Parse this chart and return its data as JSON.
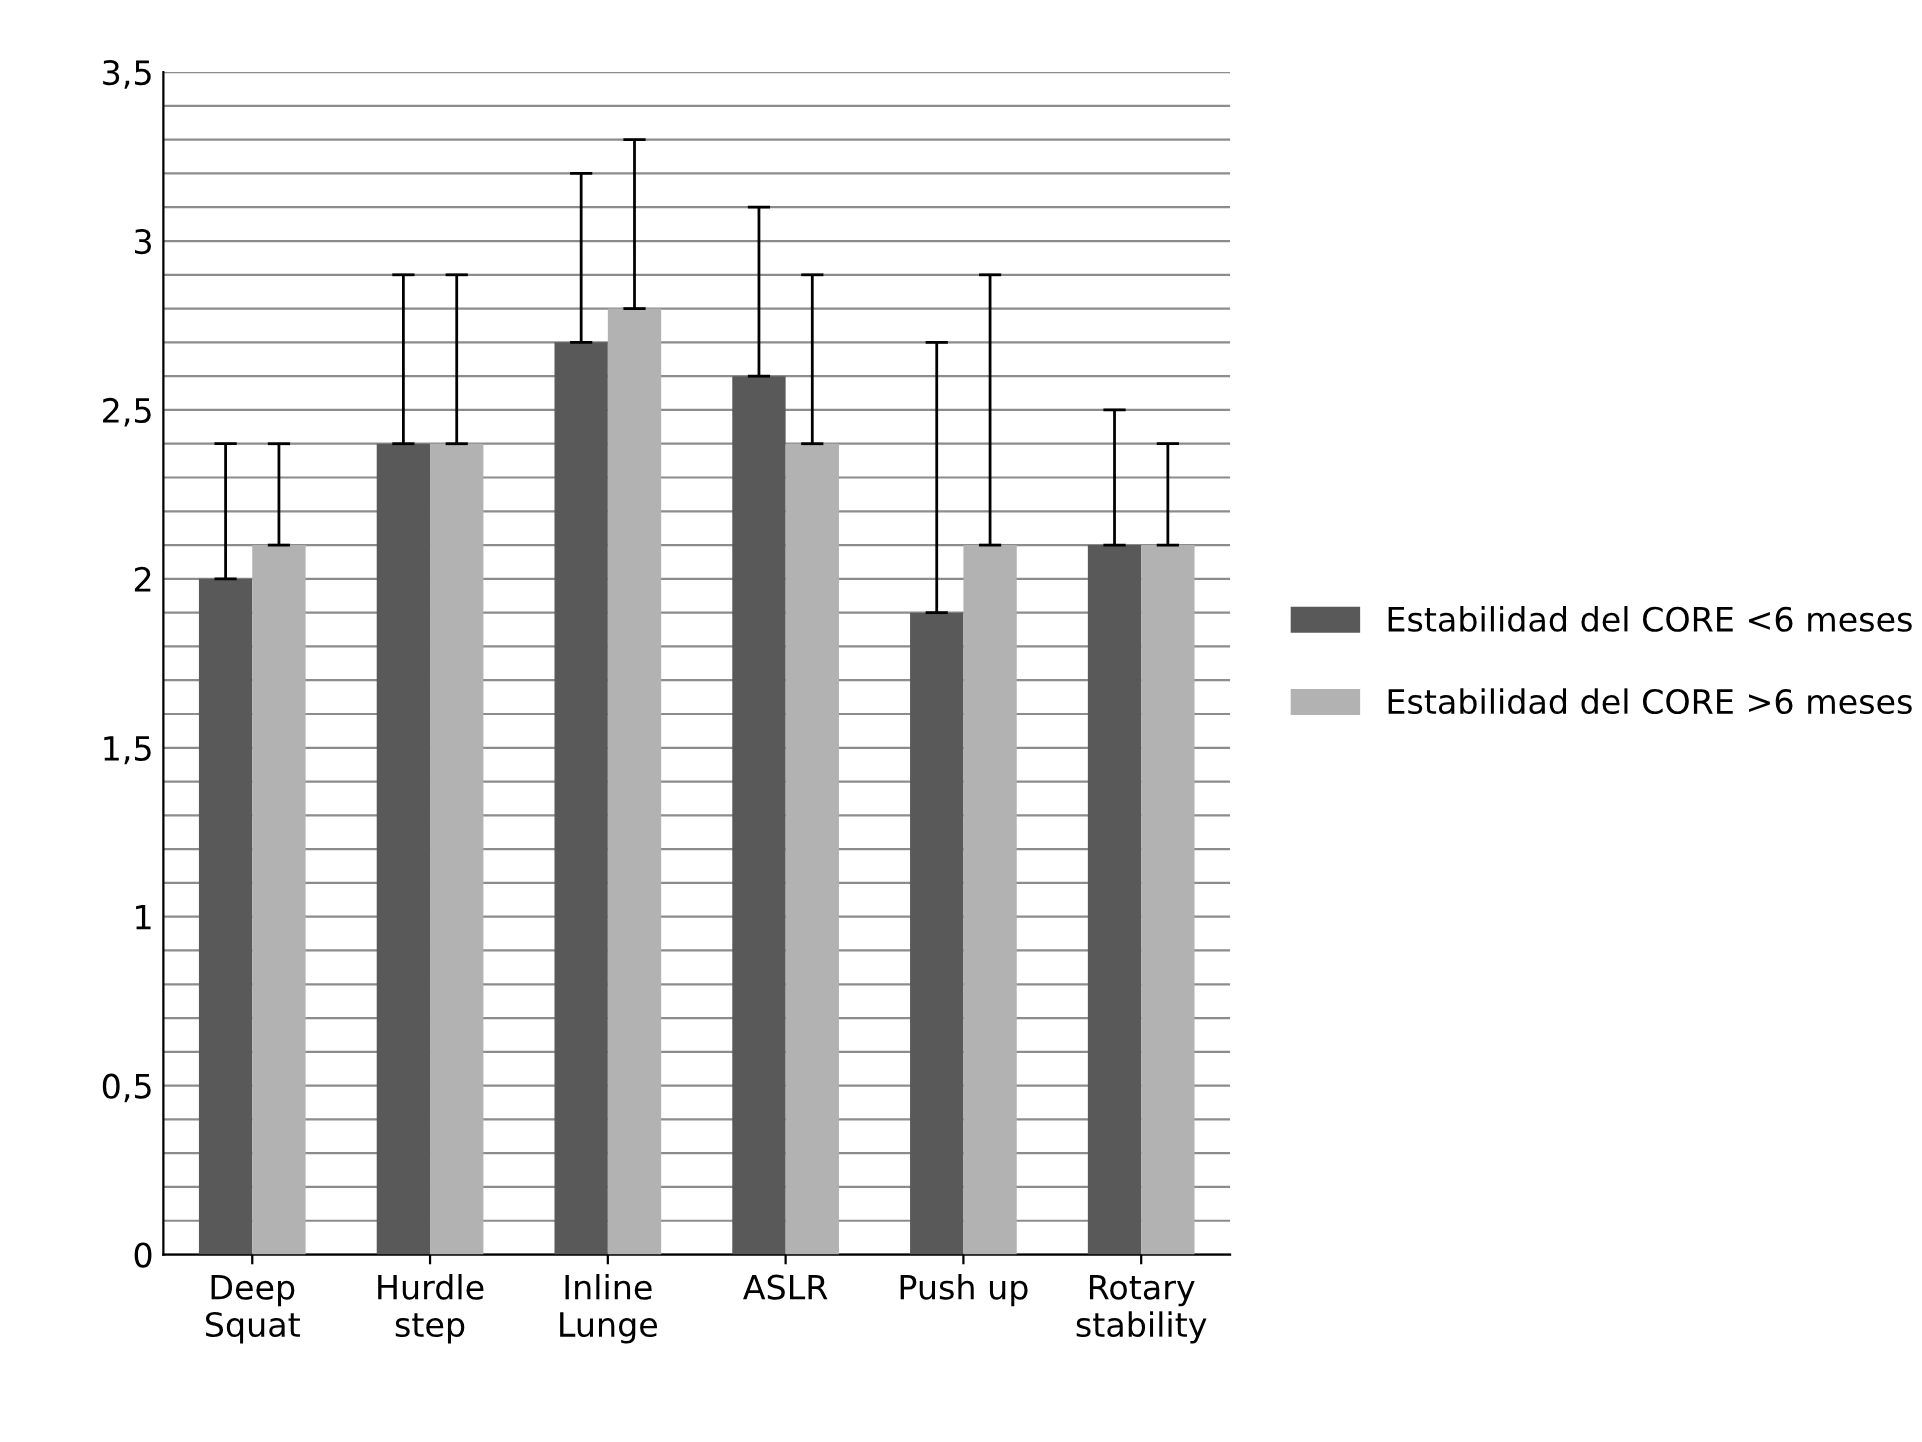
{
  "chart_data": {
    "type": "bar",
    "categories": [
      "Deep\nSquat",
      "Hurdle\nstep",
      "Inline\nLunge",
      "ASLR",
      "Push up",
      "Rotary\nstability"
    ],
    "series": [
      {
        "name": "Estabilidad del CORE <6 meses",
        "color": "#595959",
        "values": [
          2.0,
          2.4,
          2.7,
          2.6,
          1.9,
          2.1
        ],
        "errors": [
          [
            2.0,
            2.4
          ],
          [
            2.4,
            2.9
          ],
          [
            2.7,
            3.2
          ],
          [
            2.6,
            3.1
          ],
          [
            1.9,
            2.7
          ],
          [
            2.1,
            2.5
          ]
        ]
      },
      {
        "name": "Estabilidad del CORE >6 meses",
        "color": "#b2b2b2",
        "values": [
          2.1,
          2.4,
          2.8,
          2.4,
          2.1,
          2.1
        ],
        "errors": [
          [
            2.1,
            2.4
          ],
          [
            2.4,
            2.9
          ],
          [
            2.8,
            3.3
          ],
          [
            2.4,
            2.9
          ],
          [
            2.1,
            2.9
          ],
          [
            2.1,
            2.4
          ]
        ]
      }
    ],
    "ylim": [
      0,
      3.5
    ],
    "yticks": [
      0,
      {
        "value": 0.1,
        "label": null
      },
      {
        "value": 0.2,
        "label": null
      },
      {
        "value": 0.3,
        "label": null
      },
      {
        "value": 0.4,
        "label": null
      },
      {
        "value": 0.5,
        "label": "0,5"
      },
      {
        "value": 0.6,
        "label": null
      },
      {
        "value": 0.7,
        "label": null
      },
      {
        "value": 0.8,
        "label": null
      },
      {
        "value": 0.9,
        "label": null
      },
      1,
      {
        "value": 1.1,
        "label": null
      },
      {
        "value": 1.2,
        "label": null
      },
      {
        "value": 1.3,
        "label": null
      },
      {
        "value": 1.4,
        "label": null
      },
      {
        "value": 1.5,
        "label": "1,5"
      },
      {
        "value": 1.6,
        "label": null
      },
      {
        "value": 1.7,
        "label": null
      },
      {
        "value": 1.8,
        "label": null
      },
      {
        "value": 1.9,
        "label": null
      },
      2,
      {
        "value": 2.1,
        "label": null
      },
      {
        "value": 2.2,
        "label": null
      },
      {
        "value": 2.3,
        "label": null
      },
      {
        "value": 2.4,
        "label": null
      },
      {
        "value": 2.5,
        "label": "2,5"
      },
      {
        "value": 2.6,
        "label": null
      },
      {
        "value": 2.7,
        "label": null
      },
      {
        "value": 2.8,
        "label": null
      },
      {
        "value": 2.9,
        "label": null
      },
      3,
      {
        "value": 3.1,
        "label": null
      },
      {
        "value": 3.2,
        "label": null
      },
      {
        "value": 3.3,
        "label": null
      },
      {
        "value": 3.4,
        "label": null
      },
      {
        "value": 3.5,
        "label": "3,5"
      }
    ],
    "grid": "y",
    "legend": "right"
  }
}
